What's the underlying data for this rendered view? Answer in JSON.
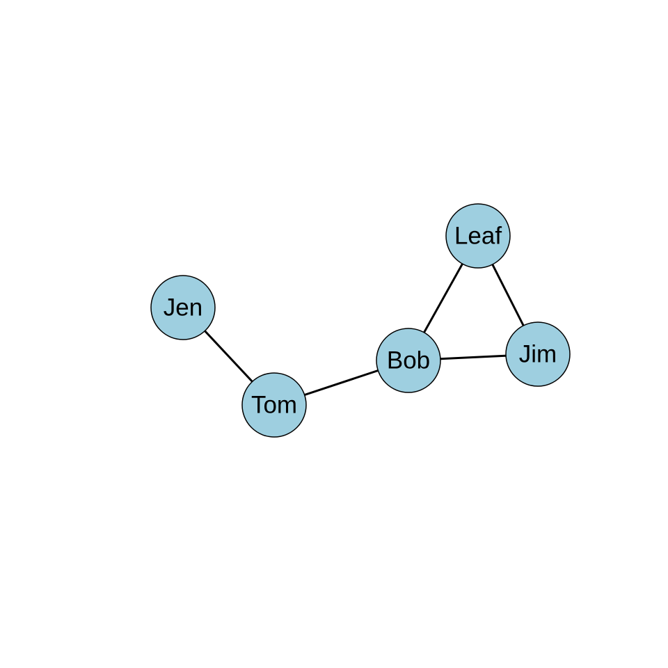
{
  "graph": {
    "node_fill": "#9ecfe0",
    "node_stroke": "#000000",
    "edge_color": "#000000",
    "nodes": [
      {
        "id": "jen",
        "label": "Jen"
      },
      {
        "id": "tom",
        "label": "Tom"
      },
      {
        "id": "bob",
        "label": "Bob"
      },
      {
        "id": "leaf",
        "label": "Leaf"
      },
      {
        "id": "jim",
        "label": "Jim"
      }
    ],
    "edges": [
      {
        "source": "jen",
        "target": "tom"
      },
      {
        "source": "tom",
        "target": "bob"
      },
      {
        "source": "bob",
        "target": "leaf"
      },
      {
        "source": "bob",
        "target": "jim"
      },
      {
        "source": "leaf",
        "target": "jim"
      }
    ]
  }
}
